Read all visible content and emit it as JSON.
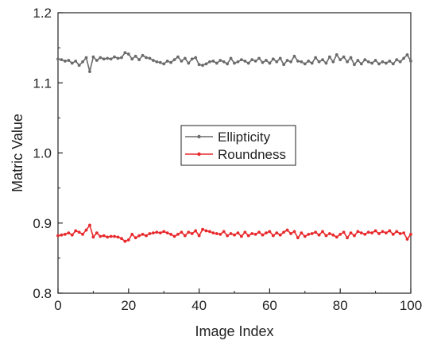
{
  "chart_data": {
    "type": "line",
    "title": "",
    "xlabel": "Image Index",
    "ylabel": "Matric Value",
    "xlim": [
      0,
      100
    ],
    "ylim": [
      0.8,
      1.2
    ],
    "xticks": [
      0,
      20,
      40,
      60,
      80,
      100
    ],
    "yticks": [
      0.8,
      0.9,
      1.0,
      1.1,
      1.2
    ],
    "xtick_labels": [
      "0",
      "20",
      "40",
      "60",
      "80",
      "100"
    ],
    "ytick_labels": [
      "0.8",
      "0.9",
      "1.0",
      "1.1",
      "1.2"
    ],
    "legend_position": "center",
    "grid": false,
    "x": [
      0,
      1,
      2,
      3,
      4,
      5,
      6,
      7,
      8,
      9,
      10,
      11,
      12,
      13,
      14,
      15,
      16,
      17,
      18,
      19,
      20,
      21,
      22,
      23,
      24,
      25,
      26,
      27,
      28,
      29,
      30,
      31,
      32,
      33,
      34,
      35,
      36,
      37,
      38,
      39,
      40,
      41,
      42,
      43,
      44,
      45,
      46,
      47,
      48,
      49,
      50,
      51,
      52,
      53,
      54,
      55,
      56,
      57,
      58,
      59,
      60,
      61,
      62,
      63,
      64,
      65,
      66,
      67,
      68,
      69,
      70,
      71,
      72,
      73,
      74,
      75,
      76,
      77,
      78,
      79,
      80,
      81,
      82,
      83,
      84,
      85,
      86,
      87,
      88,
      89,
      90,
      91,
      92,
      93,
      94,
      95,
      96,
      97,
      98,
      99,
      100
    ],
    "series": [
      {
        "name": "Ellipticity",
        "color": "#6b6b6b",
        "values": [
          1.134,
          1.133,
          1.131,
          1.132,
          1.128,
          1.131,
          1.125,
          1.13,
          1.136,
          1.116,
          1.137,
          1.132,
          1.136,
          1.134,
          1.135,
          1.134,
          1.137,
          1.135,
          1.136,
          1.143,
          1.141,
          1.134,
          1.138,
          1.133,
          1.139,
          1.136,
          1.135,
          1.132,
          1.13,
          1.129,
          1.127,
          1.131,
          1.129,
          1.133,
          1.137,
          1.131,
          1.135,
          1.128,
          1.134,
          1.136,
          1.126,
          1.125,
          1.127,
          1.13,
          1.131,
          1.128,
          1.132,
          1.13,
          1.127,
          1.135,
          1.128,
          1.13,
          1.133,
          1.131,
          1.128,
          1.133,
          1.131,
          1.135,
          1.129,
          1.132,
          1.128,
          1.134,
          1.13,
          1.135,
          1.126,
          1.132,
          1.13,
          1.138,
          1.131,
          1.13,
          1.127,
          1.131,
          1.128,
          1.136,
          1.13,
          1.133,
          1.128,
          1.137,
          1.13,
          1.14,
          1.133,
          1.137,
          1.13,
          1.136,
          1.126,
          1.132,
          1.127,
          1.133,
          1.13,
          1.128,
          1.132,
          1.127,
          1.13,
          1.128,
          1.131,
          1.127,
          1.133,
          1.13,
          1.135,
          1.14,
          1.131
        ]
      },
      {
        "name": "Roundness",
        "color": "#e8292c",
        "values": [
          0.882,
          0.883,
          0.884,
          0.886,
          0.883,
          0.889,
          0.887,
          0.884,
          0.89,
          0.897,
          0.88,
          0.886,
          0.881,
          0.882,
          0.88,
          0.881,
          0.881,
          0.88,
          0.878,
          0.874,
          0.876,
          0.884,
          0.879,
          0.882,
          0.884,
          0.882,
          0.885,
          0.886,
          0.887,
          0.886,
          0.888,
          0.886,
          0.884,
          0.881,
          0.884,
          0.887,
          0.882,
          0.887,
          0.885,
          0.889,
          0.882,
          0.891,
          0.889,
          0.888,
          0.886,
          0.885,
          0.884,
          0.888,
          0.882,
          0.885,
          0.883,
          0.886,
          0.881,
          0.887,
          0.882,
          0.885,
          0.884,
          0.887,
          0.883,
          0.886,
          0.888,
          0.882,
          0.886,
          0.883,
          0.887,
          0.89,
          0.885,
          0.888,
          0.879,
          0.886,
          0.881,
          0.884,
          0.885,
          0.887,
          0.883,
          0.888,
          0.882,
          0.885,
          0.883,
          0.88,
          0.884,
          0.887,
          0.879,
          0.886,
          0.882,
          0.888,
          0.886,
          0.884,
          0.887,
          0.886,
          0.889,
          0.885,
          0.888,
          0.886,
          0.889,
          0.884,
          0.888,
          0.885,
          0.886,
          0.877,
          0.884
        ]
      }
    ]
  }
}
